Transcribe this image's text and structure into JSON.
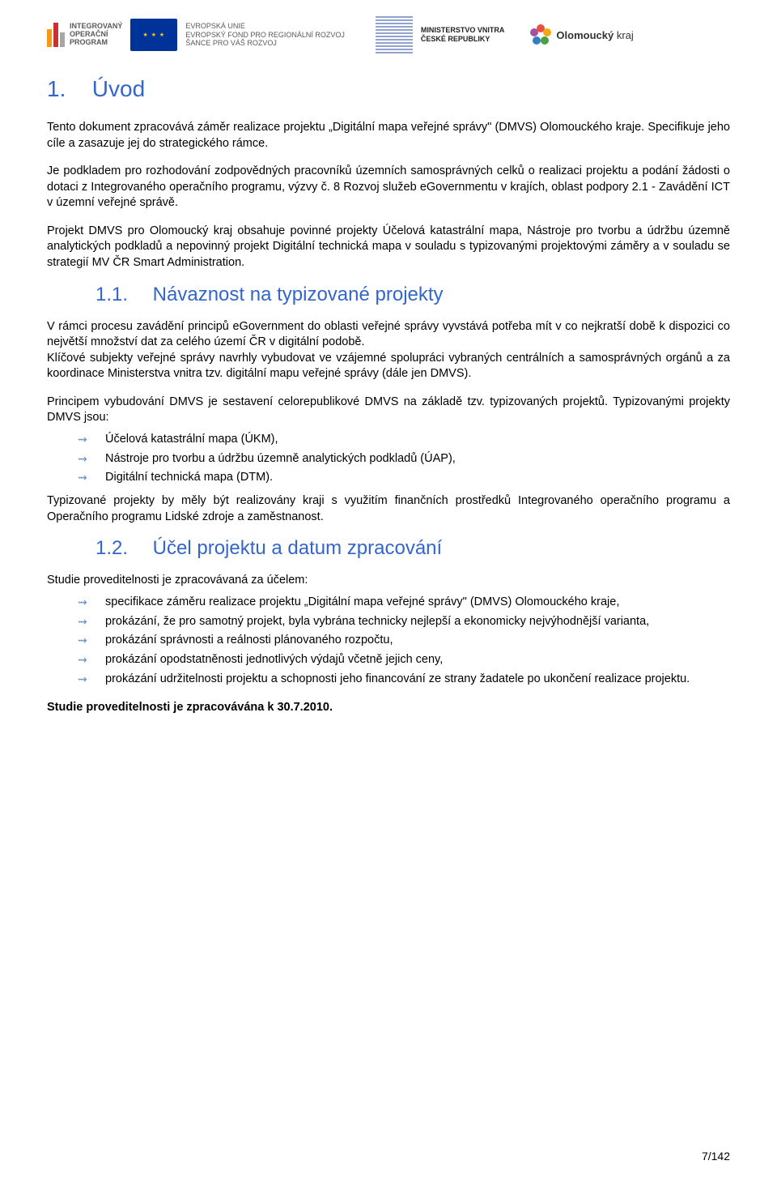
{
  "logos": {
    "iop": {
      "line1": "INTEGROVANÝ",
      "line2": "OPERAČNÍ",
      "line3": "PROGRAM",
      "bars": [
        {
          "h": 22,
          "c": "#f39c12"
        },
        {
          "h": 30,
          "c": "#c9322e"
        },
        {
          "h": 18,
          "c": "#a6a6a6"
        }
      ]
    },
    "eu": {
      "stars": "★ ★ ★",
      "line1": "EVROPSKÁ UNIE",
      "line2": "EVROPSKÝ FOND PRO REGIONÁLNÍ ROZVOJ",
      "line3": "ŠANCE PRO VÁŠ ROZVOJ"
    },
    "mv": {
      "line1": "MINISTERSTVO VNITRA",
      "line2": "ČESKÉ REPUBLIKY"
    },
    "ok": {
      "bold": "Olomoucký",
      "rest": " kraj",
      "petals": [
        {
          "c": "#e94f3d"
        },
        {
          "c": "#f2a71b"
        },
        {
          "c": "#4a9e43"
        },
        {
          "c": "#2f7fc1"
        },
        {
          "c": "#a84fa0"
        }
      ]
    }
  },
  "sec1": {
    "num": "1.",
    "title": "Úvod"
  },
  "para1": "Tento dokument zpracovává záměr realizace projektu „Digitální mapa veřejné správy\" (DMVS) Olomouckého kraje. Specifikuje jeho cíle a zasazuje jej do strategického rámce.",
  "para2": "Je podkladem pro rozhodování zodpovědných pracovníků územních samosprávných celků o realizaci projektu a podání žádosti o dotaci z Integrovaného operačního programu, výzvy č. 8 Rozvoj služeb eGovernmentu v krajích, oblast podpory 2.1 - Zavádění ICT v územní veřejné správě.",
  "para3": "Projekt DMVS pro Olomoucký kraj obsahuje povinné projekty Účelová katastrální mapa, Nástroje pro tvorbu a údržbu územně analytických podkladů a nepovinný projekt Digitální technická mapa v souladu s typizovanými projektovými záměry a v souladu se strategií MV ČR Smart Administration.",
  "sec11": {
    "num": "1.1.",
    "title": "Návaznost na typizované projekty"
  },
  "para4": "V rámci procesu zavádění principů eGovernment do oblasti veřejné správy vyvstává potřeba mít v co nejkratší době k dispozici co největší množství dat za celého území ČR v digitální podobě.",
  "para5": "Klíčové subjekty veřejné správy navrhly vybudovat ve vzájemné spolupráci vybraných centrálních a samosprávných orgánů a za koordinace Ministerstva vnitra tzv. digitální mapu veřejné správy (dále jen DMVS).",
  "para6": "Principem vybudování DMVS je sestavení celorepublikové DMVS na základě tzv. typizovaných projektů. Typizovanými projekty DMVS jsou:",
  "list1": [
    "Účelová katastrální mapa (ÚKM),",
    "Nástroje pro tvorbu a údržbu územně analytických podkladů (ÚAP),",
    "Digitální technická mapa (DTM)."
  ],
  "para7": "Typizované projekty by měly být realizovány kraji s využitím finančních prostředků Integrovaného operačního programu a Operačního programu Lidské zdroje a zaměstnanost.",
  "sec12": {
    "num": "1.2.",
    "title": "Účel projektu a datum zpracování"
  },
  "para8": "Studie proveditelnosti je zpracovávaná za účelem:",
  "list2": [
    "specifikace záměru realizace projektu „Digitální mapa veřejné správy\" (DMVS) Olomouckého kraje,",
    "prokázání, že pro samotný projekt, byla vybrána technicky nejlepší a ekonomicky nejvýhodnější varianta,",
    "prokázání správnosti a reálnosti plánovaného rozpočtu,",
    "prokázání opodstatněnosti jednotlivých výdajů včetně jejich ceny,",
    "prokázání udržitelnosti projektu a schopnosti jeho financování ze strany žadatele po ukončení realizace projektu."
  ],
  "para9": "Studie proveditelnosti je zpracovávána k 30.7.2010.",
  "footer": "7/142",
  "bullet_glyph": "⇝"
}
